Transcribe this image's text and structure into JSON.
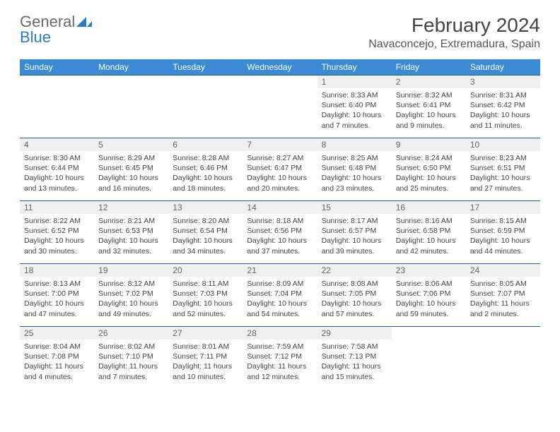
{
  "logo": {
    "text_gray": "General",
    "text_blue": "Blue"
  },
  "title": "February 2024",
  "location": "Navaconcejo, Extremadura, Spain",
  "colors": {
    "header_bg": "#3b8bd4",
    "header_text": "#ffffff",
    "divider": "#2b5b8a",
    "daynum_bg": "#f0f0f0",
    "daynum_text": "#666666",
    "body_text": "#444444",
    "logo_gray": "#6b6b6b",
    "logo_blue": "#2b7cc4"
  },
  "day_headers": [
    "Sunday",
    "Monday",
    "Tuesday",
    "Wednesday",
    "Thursday",
    "Friday",
    "Saturday"
  ],
  "weeks": [
    [
      null,
      null,
      null,
      null,
      {
        "n": "1",
        "sr": "Sunrise: 8:33 AM",
        "ss": "Sunset: 6:40 PM",
        "d1": "Daylight: 10 hours",
        "d2": "and 7 minutes."
      },
      {
        "n": "2",
        "sr": "Sunrise: 8:32 AM",
        "ss": "Sunset: 6:41 PM",
        "d1": "Daylight: 10 hours",
        "d2": "and 9 minutes."
      },
      {
        "n": "3",
        "sr": "Sunrise: 8:31 AM",
        "ss": "Sunset: 6:42 PM",
        "d1": "Daylight: 10 hours",
        "d2": "and 11 minutes."
      }
    ],
    [
      {
        "n": "4",
        "sr": "Sunrise: 8:30 AM",
        "ss": "Sunset: 6:44 PM",
        "d1": "Daylight: 10 hours",
        "d2": "and 13 minutes."
      },
      {
        "n": "5",
        "sr": "Sunrise: 8:29 AM",
        "ss": "Sunset: 6:45 PM",
        "d1": "Daylight: 10 hours",
        "d2": "and 16 minutes."
      },
      {
        "n": "6",
        "sr": "Sunrise: 8:28 AM",
        "ss": "Sunset: 6:46 PM",
        "d1": "Daylight: 10 hours",
        "d2": "and 18 minutes."
      },
      {
        "n": "7",
        "sr": "Sunrise: 8:27 AM",
        "ss": "Sunset: 6:47 PM",
        "d1": "Daylight: 10 hours",
        "d2": "and 20 minutes."
      },
      {
        "n": "8",
        "sr": "Sunrise: 8:25 AM",
        "ss": "Sunset: 6:48 PM",
        "d1": "Daylight: 10 hours",
        "d2": "and 23 minutes."
      },
      {
        "n": "9",
        "sr": "Sunrise: 8:24 AM",
        "ss": "Sunset: 6:50 PM",
        "d1": "Daylight: 10 hours",
        "d2": "and 25 minutes."
      },
      {
        "n": "10",
        "sr": "Sunrise: 8:23 AM",
        "ss": "Sunset: 6:51 PM",
        "d1": "Daylight: 10 hours",
        "d2": "and 27 minutes."
      }
    ],
    [
      {
        "n": "11",
        "sr": "Sunrise: 8:22 AM",
        "ss": "Sunset: 6:52 PM",
        "d1": "Daylight: 10 hours",
        "d2": "and 30 minutes."
      },
      {
        "n": "12",
        "sr": "Sunrise: 8:21 AM",
        "ss": "Sunset: 6:53 PM",
        "d1": "Daylight: 10 hours",
        "d2": "and 32 minutes."
      },
      {
        "n": "13",
        "sr": "Sunrise: 8:20 AM",
        "ss": "Sunset: 6:54 PM",
        "d1": "Daylight: 10 hours",
        "d2": "and 34 minutes."
      },
      {
        "n": "14",
        "sr": "Sunrise: 8:18 AM",
        "ss": "Sunset: 6:56 PM",
        "d1": "Daylight: 10 hours",
        "d2": "and 37 minutes."
      },
      {
        "n": "15",
        "sr": "Sunrise: 8:17 AM",
        "ss": "Sunset: 6:57 PM",
        "d1": "Daylight: 10 hours",
        "d2": "and 39 minutes."
      },
      {
        "n": "16",
        "sr": "Sunrise: 8:16 AM",
        "ss": "Sunset: 6:58 PM",
        "d1": "Daylight: 10 hours",
        "d2": "and 42 minutes."
      },
      {
        "n": "17",
        "sr": "Sunrise: 8:15 AM",
        "ss": "Sunset: 6:59 PM",
        "d1": "Daylight: 10 hours",
        "d2": "and 44 minutes."
      }
    ],
    [
      {
        "n": "18",
        "sr": "Sunrise: 8:13 AM",
        "ss": "Sunset: 7:00 PM",
        "d1": "Daylight: 10 hours",
        "d2": "and 47 minutes."
      },
      {
        "n": "19",
        "sr": "Sunrise: 8:12 AM",
        "ss": "Sunset: 7:02 PM",
        "d1": "Daylight: 10 hours",
        "d2": "and 49 minutes."
      },
      {
        "n": "20",
        "sr": "Sunrise: 8:11 AM",
        "ss": "Sunset: 7:03 PM",
        "d1": "Daylight: 10 hours",
        "d2": "and 52 minutes."
      },
      {
        "n": "21",
        "sr": "Sunrise: 8:09 AM",
        "ss": "Sunset: 7:04 PM",
        "d1": "Daylight: 10 hours",
        "d2": "and 54 minutes."
      },
      {
        "n": "22",
        "sr": "Sunrise: 8:08 AM",
        "ss": "Sunset: 7:05 PM",
        "d1": "Daylight: 10 hours",
        "d2": "and 57 minutes."
      },
      {
        "n": "23",
        "sr": "Sunrise: 8:06 AM",
        "ss": "Sunset: 7:06 PM",
        "d1": "Daylight: 10 hours",
        "d2": "and 59 minutes."
      },
      {
        "n": "24",
        "sr": "Sunrise: 8:05 AM",
        "ss": "Sunset: 7:07 PM",
        "d1": "Daylight: 11 hours",
        "d2": "and 2 minutes."
      }
    ],
    [
      {
        "n": "25",
        "sr": "Sunrise: 8:04 AM",
        "ss": "Sunset: 7:08 PM",
        "d1": "Daylight: 11 hours",
        "d2": "and 4 minutes."
      },
      {
        "n": "26",
        "sr": "Sunrise: 8:02 AM",
        "ss": "Sunset: 7:10 PM",
        "d1": "Daylight: 11 hours",
        "d2": "and 7 minutes."
      },
      {
        "n": "27",
        "sr": "Sunrise: 8:01 AM",
        "ss": "Sunset: 7:11 PM",
        "d1": "Daylight: 11 hours",
        "d2": "and 10 minutes."
      },
      {
        "n": "28",
        "sr": "Sunrise: 7:59 AM",
        "ss": "Sunset: 7:12 PM",
        "d1": "Daylight: 11 hours",
        "d2": "and 12 minutes."
      },
      {
        "n": "29",
        "sr": "Sunrise: 7:58 AM",
        "ss": "Sunset: 7:13 PM",
        "d1": "Daylight: 11 hours",
        "d2": "and 15 minutes."
      },
      null,
      null
    ]
  ]
}
